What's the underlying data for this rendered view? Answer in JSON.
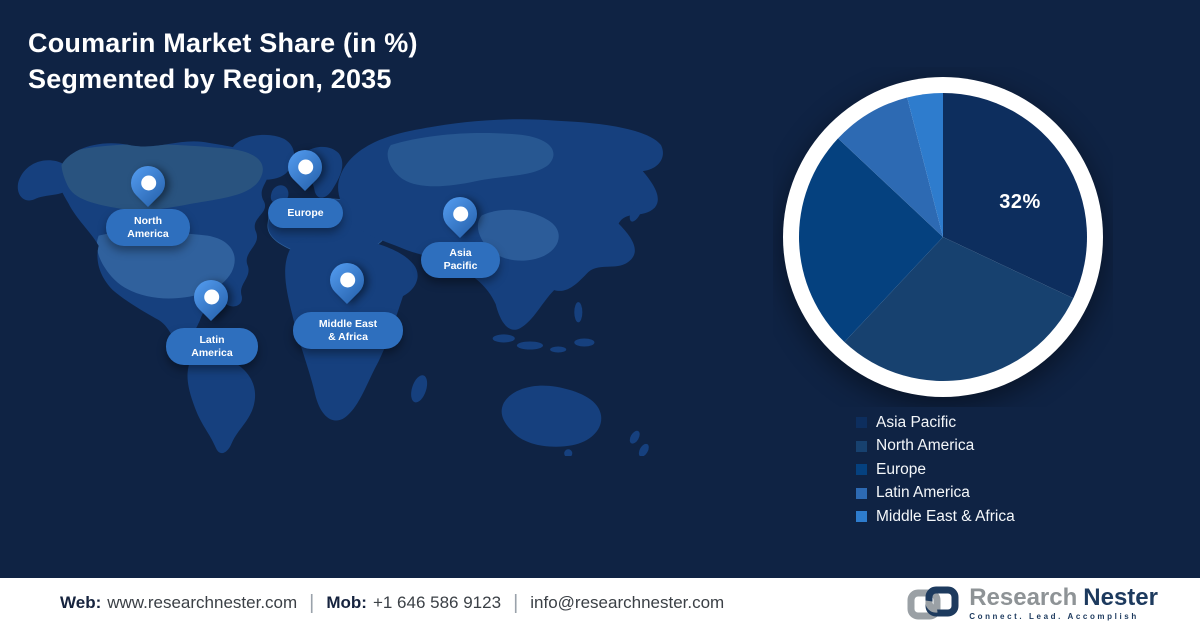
{
  "title": {
    "line1": "Coumarin Market Share (in %)",
    "line2": "Segmented by Region, 2035"
  },
  "map": {
    "pins": [
      {
        "id": "north-america",
        "lines": [
          "North",
          "America"
        ]
      },
      {
        "id": "europe",
        "lines": [
          "Europe"
        ]
      },
      {
        "id": "asia-pacific",
        "lines": [
          "Asia",
          "Pacific"
        ]
      },
      {
        "id": "latin-america",
        "lines": [
          "Latin",
          "America"
        ]
      },
      {
        "id": "middle-east-africa",
        "lines": [
          "Middle East",
          "& Africa"
        ]
      }
    ]
  },
  "chart_data": {
    "type": "pie",
    "title": "Coumarin Market Share (in %) Segmented by Region, 2035",
    "categories": [
      "Asia Pacific",
      "North America",
      "Europe",
      "Latin America",
      "Middle East & Africa"
    ],
    "values": [
      32,
      30,
      25,
      9,
      4
    ],
    "unit": "%",
    "start_angle_deg": 0,
    "direction": "clockwise",
    "legend_position": "below-right",
    "series": [
      {
        "name": "Asia Pacific",
        "value": 32,
        "color": "#0d2e5e",
        "value_label": "32%"
      },
      {
        "name": "North America",
        "value": 30,
        "color": "#17416f",
        "value_label": ""
      },
      {
        "name": "Europe",
        "value": 25,
        "color": "#05417f",
        "value_label": ""
      },
      {
        "name": "Latin America",
        "value": 9,
        "color": "#2d6ab3",
        "value_label": ""
      },
      {
        "name": "Middle East & Africa",
        "value": 4,
        "color": "#2e7ccd",
        "value_label": ""
      }
    ]
  },
  "footer": {
    "web_label": "Web:",
    "web_value": "www.researchnester.com",
    "mob_label": "Mob:",
    "mob_value": "+1 646 586 9123",
    "email_value": "info@researchnester.com",
    "separator": "|"
  },
  "brand": {
    "name_part1": "Research",
    "name_part2": "Nester",
    "tagline": "Connect. Lead. Accomplish"
  },
  "colors": {
    "background": "#0f2344",
    "map_base": "#16407e",
    "map_light_1": "#2b5580",
    "map_light_2": "#33649f",
    "pin": "#3c85dc",
    "pin_pill": "#2e6fbe",
    "pie_ring": "#ffffff",
    "footer_bg": "#ffffff",
    "brand_gray": "#8e9396",
    "brand_navy": "#1d3a5e"
  }
}
